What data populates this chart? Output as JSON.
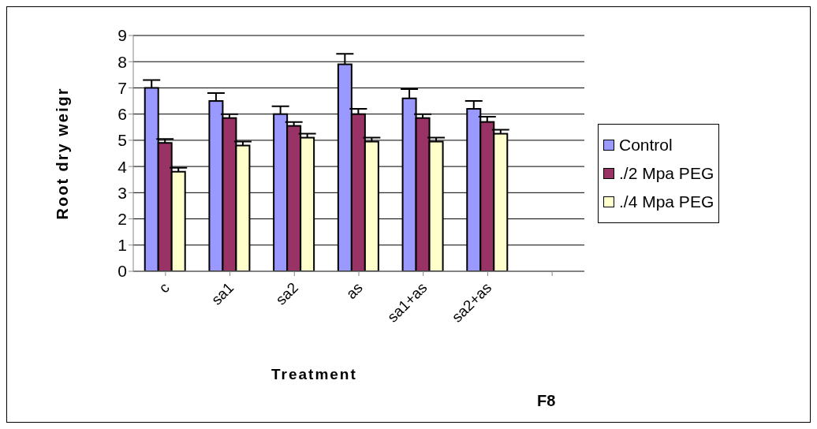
{
  "chart_data": {
    "type": "bar",
    "xlabel": "Treatment",
    "ylabel": "Root dry weigr",
    "categories": [
      "c",
      "sa1",
      "sa2",
      "as",
      "sa1+as",
      "sa2+as",
      null
    ],
    "series": [
      {
        "name": "Control",
        "color": "#9999ff",
        "values": [
          7.0,
          6.5,
          6.0,
          7.9,
          6.6,
          6.2,
          null
        ],
        "errors": [
          [
            7.0,
            7.3
          ],
          [
            6.5,
            6.8
          ],
          [
            6.0,
            6.3
          ],
          [
            7.9,
            8.3
          ],
          [
            6.6,
            6.95
          ],
          [
            6.2,
            6.5
          ],
          null
        ]
      },
      {
        "name": "./2 Mpa PEG",
        "color": "#993366",
        "values": [
          4.9,
          5.85,
          5.55,
          6.0,
          5.85,
          5.7,
          null
        ],
        "errors": [
          [
            4.9,
            5.05
          ],
          [
            5.85,
            6.0
          ],
          [
            5.55,
            5.7
          ],
          [
            6.0,
            6.2
          ],
          [
            5.85,
            6.0
          ],
          [
            5.7,
            5.9
          ],
          null
        ]
      },
      {
        "name": "./4 Mpa PEG",
        "color": "#ffffcc",
        "values": [
          3.8,
          4.8,
          5.1,
          4.95,
          4.95,
          5.25,
          null
        ],
        "errors": [
          [
            3.8,
            3.95
          ],
          [
            4.8,
            4.95
          ],
          [
            5.1,
            5.25
          ],
          [
            4.95,
            5.1
          ],
          [
            4.95,
            5.1
          ],
          [
            5.25,
            5.4
          ],
          null
        ]
      }
    ],
    "ylim": [
      0,
      9
    ],
    "yticks": [
      0,
      1,
      2,
      3,
      4,
      5,
      6,
      7,
      8,
      9
    ],
    "grid": "y",
    "legend": "right",
    "annotations": [
      "F8"
    ]
  }
}
